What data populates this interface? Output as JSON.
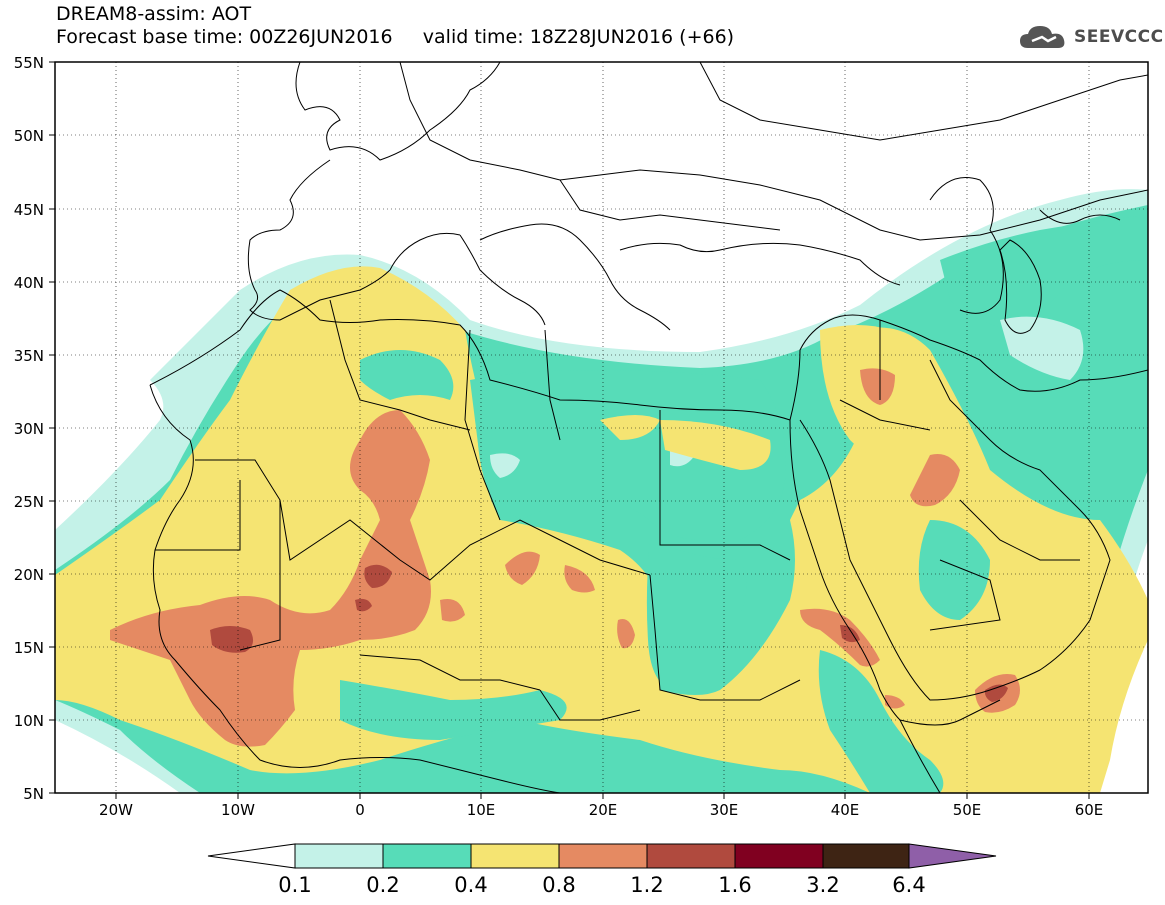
{
  "header": {
    "title": "DREAM8-assim: AOT",
    "subtitle": "Forecast base time: 00Z26JUN2016     valid time: 18Z28JUN2016 (+66)",
    "logo_text": "SEEVCCC",
    "logo_icon": "cloud-icon"
  },
  "map": {
    "lat_labels": [
      "55N",
      "50N",
      "45N",
      "40N",
      "35N",
      "30N",
      "25N",
      "20N",
      "15N",
      "10N",
      "5N"
    ],
    "lon_labels": [
      "20W",
      "10W",
      "0",
      "10E",
      "20E",
      "30E",
      "40E",
      "50E",
      "60E"
    ]
  },
  "colorbar": {
    "labels": [
      "0.1",
      "0.2",
      "0.4",
      "0.8",
      "1.2",
      "1.6",
      "3.2",
      "6.4"
    ],
    "colors": [
      "#ffffff",
      "#c4f2e8",
      "#57dcb8",
      "#f5e472",
      "#e58a62",
      "#b04a3e",
      "#800020",
      "#3e2414",
      "#8f5fa8"
    ]
  }
}
